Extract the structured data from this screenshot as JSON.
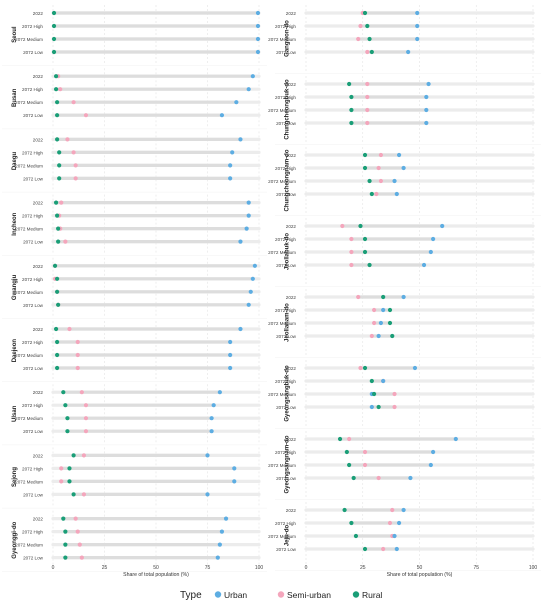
{
  "chart_data": {
    "type": "dumbbell",
    "categories": [
      "2022",
      "2072 High",
      "2072 Medium",
      "2072 Low"
    ],
    "xlabel": "Share of total population (%)",
    "xlim": [
      0,
      100
    ],
    "xticks": [
      "0",
      "25",
      "50",
      "75",
      "100"
    ],
    "legend": {
      "title": "Type",
      "position": "bottom",
      "items": [
        {
          "name": "Urban",
          "color": "#5DADE2"
        },
        {
          "name": "Semi-urban",
          "color": "#F4A6BC"
        },
        {
          "name": "Rural",
          "color": "#1A9E77"
        }
      ]
    },
    "grid": "vertical dashed",
    "columns": [
      {
        "panels": [
          {
            "region": "Seoul",
            "rows": [
              {
                "urban": 99.5,
                "semi": null,
                "rural": 0.5
              },
              {
                "urban": 99.5,
                "semi": null,
                "rural": 0.5
              },
              {
                "urban": 99.5,
                "semi": null,
                "rural": 0.5
              },
              {
                "urban": 99.5,
                "semi": null,
                "rural": 0.5
              }
            ]
          },
          {
            "region": "Busan",
            "rows": [
              {
                "urban": 97,
                "semi": 2.5,
                "rural": 1.5
              },
              {
                "urban": 95,
                "semi": 3.5,
                "rural": 1.5
              },
              {
                "urban": 89,
                "semi": 10,
                "rural": 2
              },
              {
                "urban": 82,
                "semi": 16,
                "rural": 2
              }
            ]
          },
          {
            "region": "Daegu",
            "rows": [
              {
                "urban": 91,
                "semi": 7,
                "rural": 2
              },
              {
                "urban": 87,
                "semi": 10,
                "rural": 3
              },
              {
                "urban": 86,
                "semi": 11,
                "rural": 3
              },
              {
                "urban": 86,
                "semi": 11,
                "rural": 3
              }
            ]
          },
          {
            "region": "Incheon",
            "rows": [
              {
                "urban": 95,
                "semi": 4,
                "rural": 1.5
              },
              {
                "urban": 95,
                "semi": 3,
                "rural": 2
              },
              {
                "urban": 94,
                "semi": 3.5,
                "rural": 2.5
              },
              {
                "urban": 91,
                "semi": 6,
                "rural": 2.5
              }
            ]
          },
          {
            "region": "Gwangju",
            "rows": [
              {
                "urban": 98,
                "semi": 1,
                "rural": 1
              },
              {
                "urban": 97,
                "semi": 1,
                "rural": 2
              },
              {
                "urban": 96,
                "semi": 2,
                "rural": 2
              },
              {
                "urban": 95,
                "semi": 2.5,
                "rural": 2.5
              }
            ]
          },
          {
            "region": "Daejeon",
            "rows": [
              {
                "urban": 91,
                "semi": 8,
                "rural": 1.5
              },
              {
                "urban": 86,
                "semi": 12,
                "rural": 2
              },
              {
                "urban": 86,
                "semi": 12,
                "rural": 2
              },
              {
                "urban": 86,
                "semi": 12,
                "rural": 2
              }
            ]
          },
          {
            "region": "Ulsan",
            "rows": [
              {
                "urban": 81,
                "semi": 14,
                "rural": 5
              },
              {
                "urban": 78,
                "semi": 16,
                "rural": 6
              },
              {
                "urban": 77,
                "semi": 16,
                "rural": 7
              },
              {
                "urban": 77,
                "semi": 16,
                "rural": 7
              }
            ]
          },
          {
            "region": "Sejong",
            "rows": [
              {
                "urban": 75,
                "semi": 15,
                "rural": 10
              },
              {
                "urban": 88,
                "semi": 4,
                "rural": 8
              },
              {
                "urban": 88,
                "semi": 4,
                "rural": 8
              },
              {
                "urban": 75,
                "semi": 15,
                "rural": 10
              }
            ]
          },
          {
            "region": "Gyeonggi-do",
            "rows": [
              {
                "urban": 84,
                "semi": 11,
                "rural": 5
              },
              {
                "urban": 82,
                "semi": 12,
                "rural": 6
              },
              {
                "urban": 81,
                "semi": 13,
                "rural": 6
              },
              {
                "urban": 80,
                "semi": 14,
                "rural": 6
              }
            ]
          }
        ]
      },
      {
        "panels": [
          {
            "region": "Gangwon-do",
            "rows": [
              {
                "urban": 49,
                "semi": 25,
                "rural": 26
              },
              {
                "urban": 49,
                "semi": 24,
                "rural": 27
              },
              {
                "urban": 49,
                "semi": 23,
                "rural": 28
              },
              {
                "urban": 45,
                "semi": 27,
                "rural": 29
              }
            ]
          },
          {
            "region": "Chungcheongbuk-do",
            "rows": [
              {
                "urban": 54,
                "semi": 27,
                "rural": 19
              },
              {
                "urban": 53,
                "semi": 27,
                "rural": 20
              },
              {
                "urban": 53,
                "semi": 27,
                "rural": 20
              },
              {
                "urban": 53,
                "semi": 27,
                "rural": 20
              }
            ]
          },
          {
            "region": "Chungcheongnam-do",
            "rows": [
              {
                "urban": 41,
                "semi": 33,
                "rural": 26
              },
              {
                "urban": 43,
                "semi": 32,
                "rural": 26
              },
              {
                "urban": 39,
                "semi": 33,
                "rural": 28
              },
              {
                "urban": 40,
                "semi": 31,
                "rural": 29
              }
            ]
          },
          {
            "region": "Jeollabuk-do",
            "rows": [
              {
                "urban": 60,
                "semi": 16,
                "rural": 24
              },
              {
                "urban": 56,
                "semi": 20,
                "rural": 26
              },
              {
                "urban": 55,
                "semi": 20,
                "rural": 26
              },
              {
                "urban": 52,
                "semi": 20,
                "rural": 28
              }
            ]
          },
          {
            "region": "Jeollanam-do",
            "rows": [
              {
                "urban": 43,
                "semi": 23,
                "rural": 34
              },
              {
                "urban": 34,
                "semi": 30,
                "rural": 37
              },
              {
                "urban": 33,
                "semi": 30,
                "rural": 37
              },
              {
                "urban": 32,
                "semi": 29,
                "rural": 38
              }
            ]
          },
          {
            "region": "Gyeongsangbuk-do",
            "rows": [
              {
                "urban": 48,
                "semi": 24,
                "rural": 26
              },
              {
                "urban": 34,
                "semi": 34,
                "rural": 29
              },
              {
                "urban": 29,
                "semi": 39,
                "rural": 30
              },
              {
                "urban": 29,
                "semi": 39,
                "rural": 32
              }
            ]
          },
          {
            "region": "Gyeongsangnam-do",
            "rows": [
              {
                "urban": 66,
                "semi": 19,
                "rural": 15
              },
              {
                "urban": 56,
                "semi": 26,
                "rural": 18
              },
              {
                "urban": 55,
                "semi": 26,
                "rural": 19
              },
              {
                "urban": 46,
                "semi": 32,
                "rural": 21
              }
            ]
          },
          {
            "region": "Jeju-do",
            "rows": [
              {
                "urban": 43,
                "semi": 38,
                "rural": 17
              },
              {
                "urban": 41,
                "semi": 37,
                "rural": 20
              },
              {
                "urban": 39,
                "semi": 38,
                "rural": 22
              },
              {
                "urban": 40,
                "semi": 34,
                "rural": 26
              }
            ]
          }
        ]
      }
    ]
  }
}
